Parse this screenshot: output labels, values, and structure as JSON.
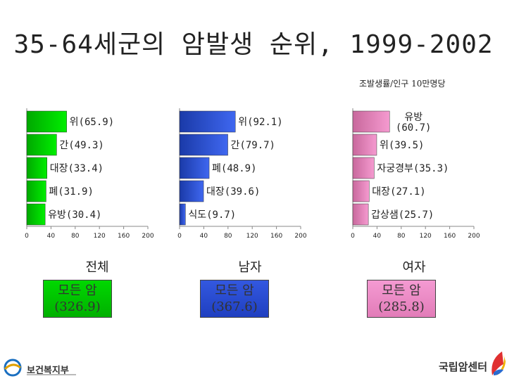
{
  "title": "35-64세군의 암발생 순위, 1999-2002",
  "unit_note": "조발생률/인구 10만명당",
  "colors": {
    "total": "#00e000",
    "male": "#2e56e0",
    "female": "#f090c8"
  },
  "chart_data": [
    {
      "type": "bar",
      "orientation": "horizontal",
      "title": "전체",
      "xlim": [
        0,
        200
      ],
      "xticks": [
        "0",
        "40",
        "80",
        "120",
        "160",
        "200"
      ],
      "categories": [
        "위",
        "간",
        "대장",
        "폐",
        "유방"
      ],
      "values": [
        65.9,
        49.3,
        33.4,
        31.9,
        30.4
      ],
      "labels": [
        "위(65.9)",
        "간(49.3)",
        "대장(33.4)",
        "폐(31.9)",
        "유방(30.4)"
      ]
    },
    {
      "type": "bar",
      "orientation": "horizontal",
      "title": "남자",
      "xlim": [
        0,
        200
      ],
      "xticks": [
        "0",
        "40",
        "80",
        "120",
        "160",
        "200"
      ],
      "categories": [
        "위",
        "간",
        "폐",
        "대장",
        "식도"
      ],
      "values": [
        92.1,
        79.7,
        48.9,
        39.6,
        9.7
      ],
      "labels": [
        "위(92.1)",
        "간(79.7)",
        "폐(48.9)",
        "대장(39.6)",
        "식도(9.7)"
      ]
    },
    {
      "type": "bar",
      "orientation": "horizontal",
      "title": "여자",
      "xlim": [
        0,
        200
      ],
      "xticks": [
        "0",
        "40",
        "80",
        "120",
        "160",
        "200"
      ],
      "categories": [
        "유방",
        "위",
        "자궁경부",
        "대장",
        "갑상샘"
      ],
      "values": [
        60.7,
        39.5,
        35.3,
        27.1,
        25.7
      ],
      "labels": [
        "유방\n(60.7)",
        "위(39.5)",
        "자궁경부(35.3)",
        "대장(27.1)",
        "갑상샘(25.7)"
      ]
    }
  ],
  "panels": {
    "total": {
      "label": "전체",
      "box_line1": "모든 암",
      "box_line2": "(326.9)"
    },
    "male": {
      "label": "남자",
      "box_line1": "모든 암",
      "box_line2": "(367.6)"
    },
    "female": {
      "label": "여자",
      "box_line1": "모든 암",
      "box_line2": "(285.8)"
    }
  },
  "logos": {
    "left_text": "보건복지부",
    "right_text": "국립암센터"
  }
}
